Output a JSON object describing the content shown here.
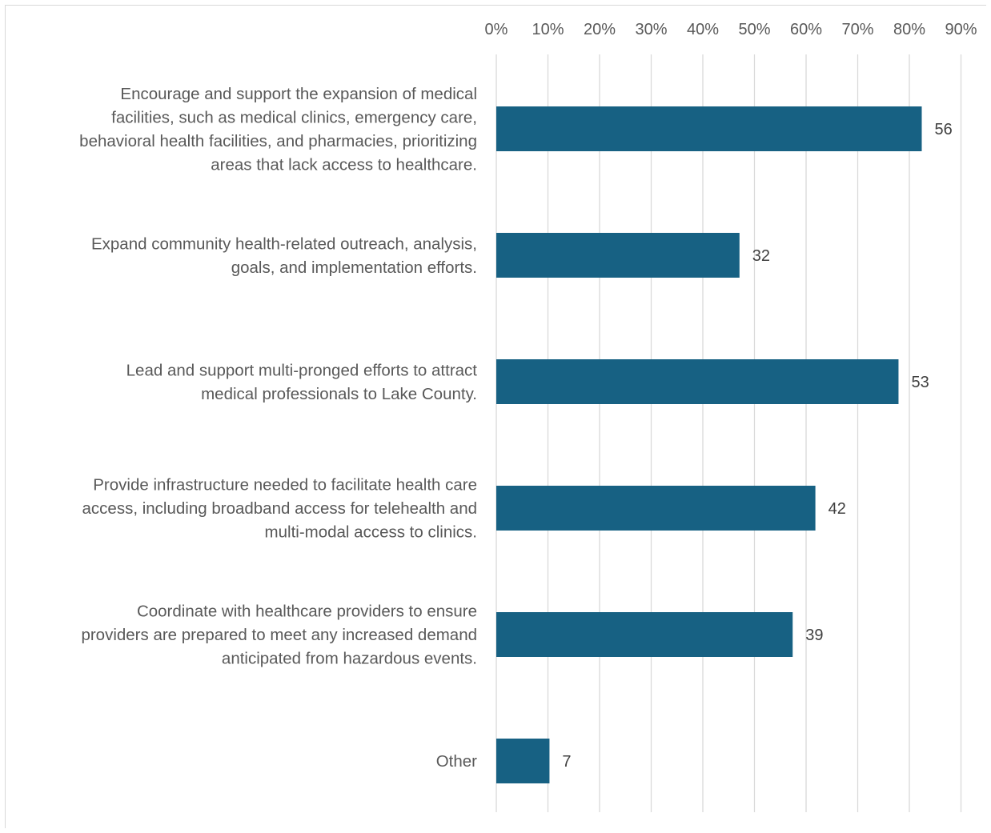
{
  "chart_data": {
    "type": "bar",
    "orientation": "horizontal",
    "categories": [
      [
        "Encourage and support the expansion of medical",
        "facilities, such as medical clinics, emergency care,",
        "behavioral health facilities, and pharmacies, prioritizing",
        "areas that lack access to healthcare."
      ],
      [
        "Expand community health-related outreach, analysis,",
        "goals, and implementation efforts."
      ],
      [
        "Lead and support multi-pronged efforts to attract",
        "medical professionals to Lake County."
      ],
      [
        "Provide infrastructure needed to facilitate health care",
        "access, including broadband access for telehealth and",
        "multi-modal access to clinics."
      ],
      [
        "Coordinate with healthcare providers to ensure",
        "providers are prepared to meet any increased demand",
        "anticipated from hazardous events."
      ],
      [
        "Other"
      ]
    ],
    "values_percent": [
      82.4,
      47.1,
      77.9,
      61.8,
      57.4,
      10.3
    ],
    "data_labels": [
      "56",
      "32",
      "53",
      "42",
      "39",
      "7"
    ],
    "x_ticks": [
      "0%",
      "10%",
      "20%",
      "30%",
      "40%",
      "50%",
      "60%",
      "70%",
      "80%",
      "90%"
    ],
    "xlim": [
      0,
      90
    ],
    "x_axis_position": "top",
    "grid": true,
    "colors": {
      "bar": "#176183",
      "grid": "#d9d9d9"
    }
  }
}
